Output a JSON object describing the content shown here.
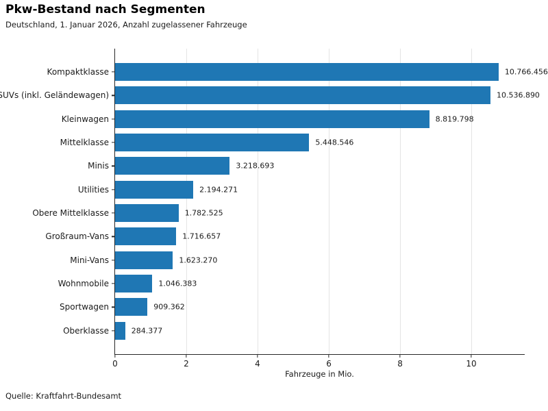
{
  "header": {
    "title": "Pkw-Bestand nach Segmenten",
    "subtitle": "Deutschland, 1. Januar 2026, Anzahl zugelassener Fahrzeuge"
  },
  "footer": {
    "source": "Quelle: Kraftfahrt-Bundesamt"
  },
  "chart_data": {
    "type": "bar",
    "orientation": "horizontal",
    "title": "Pkw-Bestand nach Segmenten",
    "subtitle": "Deutschland, 1. Januar 2026, Anzahl zugelassener Fahrzeuge",
    "categories": [
      "Kompaktklasse",
      "SUVs (inkl. Geländewagen)",
      "Kleinwagen",
      "Mittelklasse",
      "Minis",
      "Utilities",
      "Obere Mittelklasse",
      "Großraum-Vans",
      "Mini-Vans",
      "Wohnmobile",
      "Sportwagen",
      "Oberklasse"
    ],
    "values": [
      10766456,
      10536890,
      8819798,
      5448546,
      3218693,
      2194271,
      1782525,
      1716657,
      1623270,
      1046383,
      909362,
      284377
    ],
    "value_labels": [
      "10.766.456",
      "10.536.890",
      "8.819.798",
      "5.448.546",
      "3.218.693",
      "2.194.271",
      "1.782.525",
      "1.716.657",
      "1.623.270",
      "1.046.383",
      "909.362",
      "284.377"
    ],
    "xlabel": "Fahrzeuge in Mio.",
    "ylabel": "",
    "x_ticks": [
      0,
      2,
      4,
      6,
      8,
      10
    ],
    "xlim": [
      0,
      11.48
    ],
    "grid": "vertical-only",
    "bar_color": "#1f77b4",
    "gridline_color": "#e4e4e4",
    "spine_color": "#262626"
  }
}
